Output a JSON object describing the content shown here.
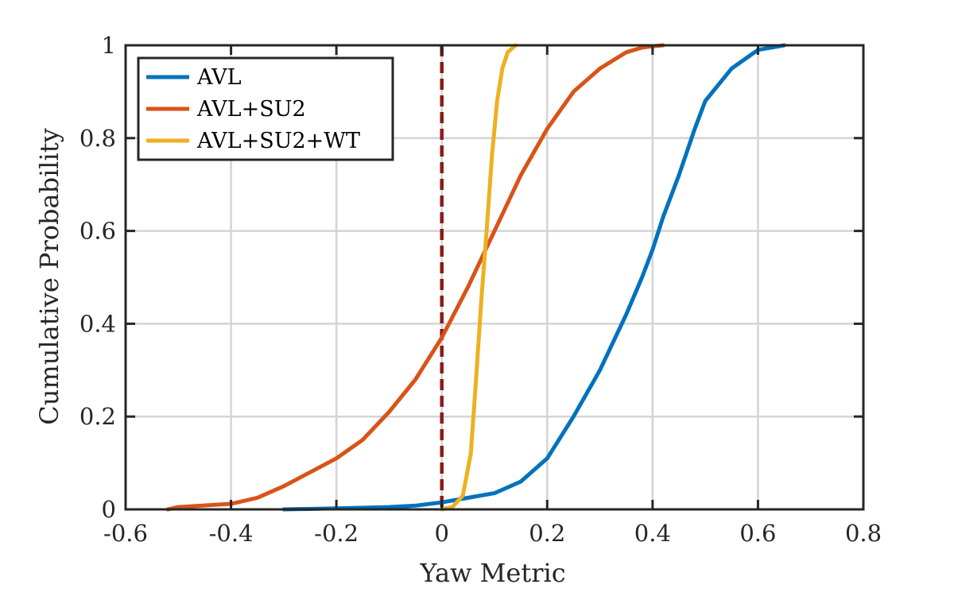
{
  "chart_data": {
    "type": "line",
    "xlabel": "Yaw Metric",
    "ylabel": "Cumulative Probability",
    "xlim": [
      -0.6,
      0.8
    ],
    "ylim": [
      0,
      1
    ],
    "xticks": [
      -0.6,
      -0.4,
      -0.2,
      0,
      0.2,
      0.4,
      0.6,
      0.8
    ],
    "xtick_labels": [
      "-0.6",
      "-0.4",
      "-0.2",
      "0",
      "0.2",
      "0.4",
      "0.6",
      "0.8"
    ],
    "yticks": [
      0,
      0.2,
      0.4,
      0.6,
      0.8,
      1
    ],
    "ytick_labels": [
      "0",
      "0.2",
      "0.4",
      "0.6",
      "0.8",
      "1"
    ],
    "grid": true,
    "legend_position": "top-left",
    "reference_line": {
      "x": 0,
      "style": "dashed",
      "color": "#8b1a1a"
    },
    "series": [
      {
        "name": "AVL",
        "color": "#0072bd",
        "x": [
          -0.3,
          -0.2,
          -0.1,
          -0.05,
          0.0,
          0.05,
          0.1,
          0.15,
          0.2,
          0.25,
          0.3,
          0.35,
          0.38,
          0.4,
          0.42,
          0.45,
          0.48,
          0.5,
          0.55,
          0.6,
          0.65
        ],
        "y": [
          0.0,
          0.002,
          0.005,
          0.008,
          0.015,
          0.025,
          0.035,
          0.06,
          0.11,
          0.2,
          0.3,
          0.42,
          0.5,
          0.56,
          0.63,
          0.72,
          0.82,
          0.88,
          0.95,
          0.99,
          1.0
        ]
      },
      {
        "name": "AVL+SU2",
        "color": "#d95319",
        "x": [
          -0.52,
          -0.5,
          -0.4,
          -0.35,
          -0.3,
          -0.25,
          -0.2,
          -0.15,
          -0.1,
          -0.05,
          0.0,
          0.05,
          0.1,
          0.15,
          0.2,
          0.25,
          0.3,
          0.35,
          0.38,
          0.4,
          0.42
        ],
        "y": [
          0.0,
          0.005,
          0.012,
          0.025,
          0.05,
          0.08,
          0.11,
          0.15,
          0.21,
          0.28,
          0.37,
          0.48,
          0.6,
          0.72,
          0.82,
          0.9,
          0.95,
          0.985,
          0.995,
          0.998,
          1.0
        ]
      },
      {
        "name": "AVL+SU2+WT",
        "color": "#edb120",
        "x": [
          0.0,
          0.02,
          0.04,
          0.055,
          0.065,
          0.075,
          0.085,
          0.095,
          0.105,
          0.115,
          0.125,
          0.14
        ],
        "y": [
          0.0,
          0.005,
          0.03,
          0.12,
          0.28,
          0.45,
          0.6,
          0.76,
          0.88,
          0.95,
          0.985,
          1.0
        ]
      }
    ]
  }
}
